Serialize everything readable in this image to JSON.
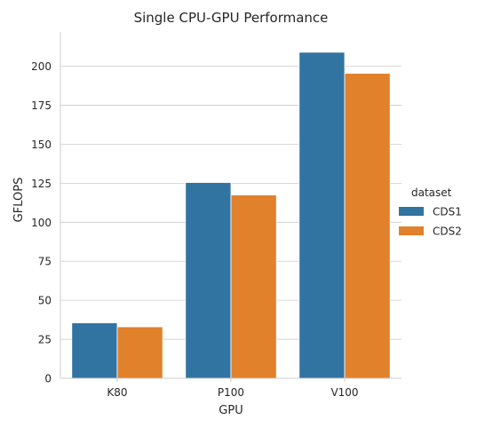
{
  "chart_data": {
    "type": "bar",
    "title": "Single CPU-GPU Performance",
    "xlabel": "GPU",
    "ylabel": "GFLOPS",
    "categories": [
      "K80",
      "P100",
      "V100"
    ],
    "series": [
      {
        "name": "CDS1",
        "color": "#3274a1",
        "values": [
          35.5,
          125.5,
          209
        ]
      },
      {
        "name": "CDS2",
        "color": "#e1812c",
        "values": [
          33,
          117.5,
          195.5
        ]
      }
    ],
    "ylim": [
      0,
      222
    ],
    "yticks": [
      0,
      25,
      50,
      75,
      100,
      125,
      150,
      175,
      200
    ],
    "ytick_labels": [
      "0",
      "25",
      "50",
      "75",
      "100",
      "125",
      "150",
      "175",
      "200"
    ],
    "grid": "horizontal",
    "legend": {
      "title": "dataset",
      "placement": "outside-right"
    }
  }
}
